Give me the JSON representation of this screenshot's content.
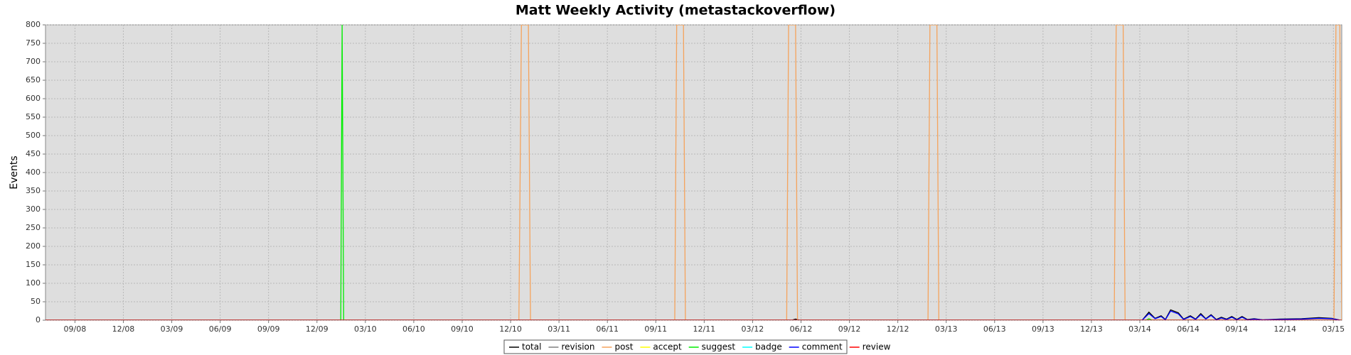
{
  "chart_data": {
    "type": "line",
    "title": "Matt Weekly Activity (metastackoverflow)",
    "y_label": "Events",
    "xlim": [
      2008.515,
      2015.21
    ],
    "xticks": [
      {
        "value": 2008.667,
        "label": "09/08"
      },
      {
        "value": 2008.917,
        "label": "12/08"
      },
      {
        "value": 2009.167,
        "label": "03/09"
      },
      {
        "value": 2009.417,
        "label": "06/09"
      },
      {
        "value": 2009.667,
        "label": "09/09"
      },
      {
        "value": 2009.917,
        "label": "12/09"
      },
      {
        "value": 2010.167,
        "label": "03/10"
      },
      {
        "value": 2010.417,
        "label": "06/10"
      },
      {
        "value": 2010.667,
        "label": "09/10"
      },
      {
        "value": 2010.917,
        "label": "12/10"
      },
      {
        "value": 2011.167,
        "label": "03/11"
      },
      {
        "value": 2011.417,
        "label": "06/11"
      },
      {
        "value": 2011.667,
        "label": "09/11"
      },
      {
        "value": 2011.917,
        "label": "12/11"
      },
      {
        "value": 2012.167,
        "label": "03/12"
      },
      {
        "value": 2012.417,
        "label": "06/12"
      },
      {
        "value": 2012.667,
        "label": "09/12"
      },
      {
        "value": 2012.917,
        "label": "12/12"
      },
      {
        "value": 2013.167,
        "label": "03/13"
      },
      {
        "value": 2013.417,
        "label": "06/13"
      },
      {
        "value": 2013.667,
        "label": "09/13"
      },
      {
        "value": 2013.917,
        "label": "12/13"
      },
      {
        "value": 2014.167,
        "label": "03/14"
      },
      {
        "value": 2014.417,
        "label": "06/14"
      },
      {
        "value": 2014.667,
        "label": "09/14"
      },
      {
        "value": 2014.917,
        "label": "12/14"
      },
      {
        "value": 2015.167,
        "label": "03/15"
      }
    ],
    "ylim": [
      0,
      800
    ],
    "yticks": [
      0,
      50,
      100,
      150,
      200,
      250,
      300,
      350,
      400,
      450,
      500,
      550,
      600,
      650,
      700,
      750,
      800
    ],
    "grid": true,
    "legend": "bottom",
    "series": [
      {
        "name": "total",
        "color": "#000000",
        "x": [
          2008.515,
          2012.37,
          2012.389,
          2012.41,
          2014.179,
          2014.214,
          2014.246,
          2014.277,
          2014.299,
          2014.326,
          2014.366,
          2014.393,
          2014.428,
          2014.455,
          2014.482,
          2014.508,
          2014.535,
          2014.562,
          2014.588,
          2014.615,
          2014.642,
          2014.668,
          2014.695,
          2014.722,
          2014.758,
          2014.802,
          2014.891,
          2015.003,
          2015.092,
          2015.159,
          2015.203
        ],
        "values": [
          0,
          0,
          3,
          0,
          0,
          22,
          5,
          12,
          2,
          28,
          20,
          3,
          12,
          3,
          18,
          4,
          15,
          2,
          8,
          3,
          10,
          2,
          10,
          2,
          4,
          1,
          3,
          4,
          7,
          5,
          0
        ]
      },
      {
        "name": "revision",
        "color": "#808080",
        "x": [
          2008.515,
          2015.21
        ],
        "values": [
          0,
          0
        ]
      },
      {
        "name": "post",
        "color": "#f5a35c",
        "x": [
          2008.515,
          2010.96,
          2010.973,
          2011.009,
          2011.02,
          2011.765,
          2011.775,
          2011.81,
          2011.82,
          2012.343,
          2012.353,
          2012.389,
          2012.399,
          2013.073,
          2013.083,
          2013.119,
          2013.129,
          2014.035,
          2014.045,
          2014.081,
          2014.091,
          2015.17,
          2015.18,
          2015.2,
          2015.21
        ],
        "values": [
          0,
          0,
          800,
          800,
          0,
          0,
          800,
          800,
          0,
          0,
          800,
          800,
          0,
          0,
          800,
          800,
          0,
          0,
          800,
          800,
          0,
          0,
          800,
          800,
          0
        ]
      },
      {
        "name": "accept",
        "color": "#ffff00",
        "x": [
          2008.515,
          2015.21
        ],
        "values": [
          0,
          0
        ]
      },
      {
        "name": "suggest",
        "color": "#00ee00",
        "x": [
          2008.515,
          2010.04,
          2010.047,
          2010.055,
          2014.2,
          2014.214,
          2014.23,
          2015.21
        ],
        "values": [
          0,
          0,
          800,
          0,
          0,
          4,
          0,
          0
        ]
      },
      {
        "name": "badge",
        "color": "#00ffff",
        "x": [
          2008.515,
          2015.21
        ],
        "values": [
          0,
          0
        ]
      },
      {
        "name": "comment",
        "color": "#0000ff",
        "x": [
          2008.515,
          2014.179,
          2014.214,
          2014.246,
          2014.277,
          2014.299,
          2014.326,
          2014.366,
          2014.393,
          2014.428,
          2014.455,
          2014.482,
          2014.508,
          2014.535,
          2014.562,
          2014.588,
          2014.615,
          2014.642,
          2014.668,
          2014.695,
          2014.722,
          2014.758,
          2014.802,
          2014.891,
          2015.003,
          2015.092,
          2015.159,
          2015.203
        ],
        "values": [
          0,
          0,
          18,
          4,
          10,
          1,
          25,
          17,
          2,
          10,
          2,
          15,
          3,
          13,
          1,
          6,
          2,
          8,
          1,
          8,
          1,
          3,
          1,
          2,
          3,
          5,
          4,
          0
        ]
      },
      {
        "name": "review",
        "color": "#ff0000",
        "x": [
          2008.515,
          2015.21
        ],
        "values": [
          0,
          0
        ]
      }
    ]
  }
}
